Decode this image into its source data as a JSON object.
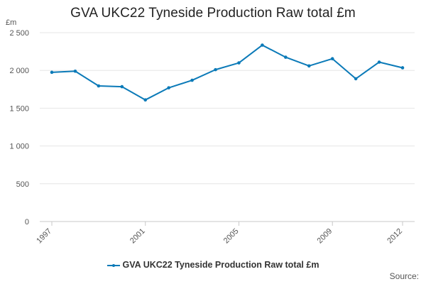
{
  "chart_data": {
    "type": "line",
    "title": "GVA UKC22 Tyneside Production Raw total £m",
    "ylabel": "£m",
    "ylim": [
      0,
      2500
    ],
    "yticks": [
      0,
      500,
      1000,
      1500,
      2000,
      2500
    ],
    "ytick_labels": [
      "0",
      "500",
      "1 000",
      "1 500",
      "2 000",
      "2 500"
    ],
    "xtick_labels": [
      "1997",
      "2001",
      "2005",
      "2009",
      "2012"
    ],
    "x": [
      1997,
      1998,
      1999,
      2000,
      2001,
      2002,
      2003,
      2004,
      2005,
      2006,
      2007,
      2008,
      2009,
      2010,
      2011,
      2012
    ],
    "series": [
      {
        "name": "GVA UKC22 Tyneside Production Raw total £m",
        "color": "#0b7ab8",
        "values": [
          1975,
          1990,
          1795,
          1785,
          1610,
          1770,
          1870,
          2010,
          2100,
          2335,
          2175,
          2060,
          2155,
          1890,
          2110,
          2035
        ]
      }
    ],
    "grid": "horizontal",
    "legend": "bottom-center"
  },
  "footer": {
    "source": "Source:"
  }
}
